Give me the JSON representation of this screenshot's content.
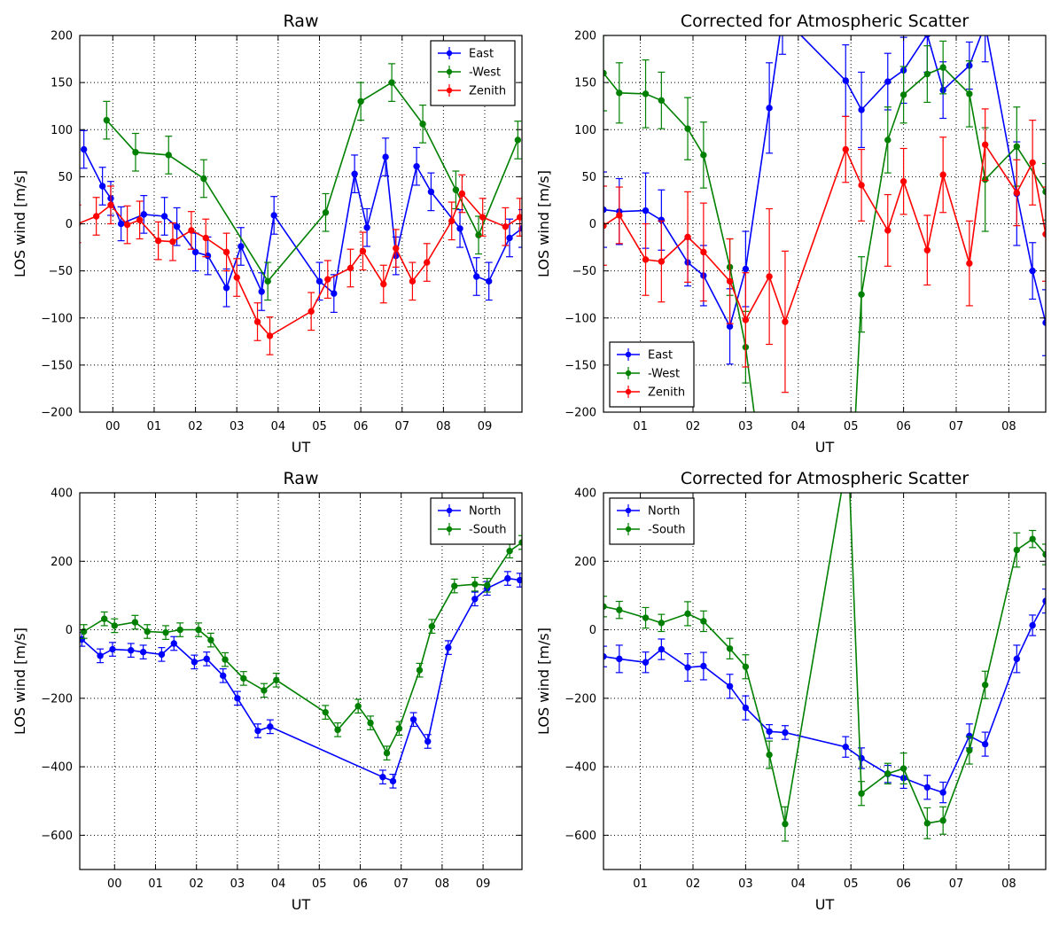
{
  "colors": {
    "blue": "#0000ff",
    "green": "#008000",
    "red": "#ff0000",
    "grid": "#000000"
  },
  "chart_data": [
    {
      "type": "line",
      "title": "Raw",
      "xlabel": "UT",
      "ylabel": "LOS wind [m/s]",
      "xlim": [
        -0.8,
        9.9
      ],
      "ylim": [
        -200,
        200
      ],
      "xticks": [
        0,
        1,
        2,
        3,
        4,
        5,
        6,
        7,
        8,
        9
      ],
      "xticklabels": [
        "00",
        "01",
        "02",
        "03",
        "04",
        "05",
        "06",
        "07",
        "08",
        "09"
      ],
      "yticks": [
        -200,
        -150,
        -100,
        -50,
        0,
        50,
        100,
        150,
        200
      ],
      "yticklabels": [
        "−200",
        "−150",
        "−100",
        "−50",
        "0",
        "50",
        "100",
        "150",
        "200"
      ],
      "grid": true,
      "legend": "upper right",
      "series": [
        {
          "name": "East",
          "color": "blue",
          "x": [
            -0.7,
            -0.25,
            -0.05,
            0.2,
            0.75,
            1.25,
            1.55,
            2.0,
            2.3,
            2.75,
            3.1,
            3.6,
            3.9,
            5.0,
            5.35,
            5.85,
            6.15,
            6.6,
            6.85,
            7.35,
            7.7,
            8.4,
            8.8,
            9.1,
            9.6,
            9.9
          ],
          "y": [
            79,
            40,
            27,
            0,
            10,
            8,
            -3,
            -30,
            -34,
            -68,
            -24,
            -72,
            9,
            -61,
            -74,
            53,
            -4,
            71,
            -34,
            61,
            34,
            -5,
            -56,
            -61,
            -15,
            -5
          ],
          "err": [
            20,
            20,
            18,
            18,
            20,
            20,
            20,
            20,
            20,
            20,
            20,
            20,
            20,
            20,
            20,
            20,
            20,
            20,
            20,
            20,
            20,
            20,
            20,
            20,
            20,
            20
          ]
        },
        {
          "name": "-West",
          "color": "green",
          "x": [
            -0.15,
            0.55,
            1.35,
            2.2,
            3.75,
            5.15,
            6.0,
            6.75,
            7.5,
            8.3,
            8.85,
            9.8
          ],
          "y": [
            110,
            76,
            73,
            48,
            -61,
            12,
            130,
            150,
            106,
            36,
            -12,
            89
          ],
          "err": [
            20,
            20,
            20,
            20,
            20,
            20,
            20,
            20,
            20,
            20,
            20,
            20
          ]
        },
        {
          "name": "Zenith",
          "color": "red",
          "x": [
            -0.85,
            -0.4,
            -0.05,
            0.35,
            0.65,
            1.1,
            1.45,
            1.9,
            2.25,
            2.75,
            3.0,
            3.5,
            3.8,
            4.8,
            5.2,
            5.75,
            6.05,
            6.55,
            6.85,
            7.25,
            7.6,
            8.2,
            8.45,
            8.95,
            9.5,
            9.85
          ],
          "y": [
            0,
            8,
            20,
            -1,
            4,
            -18,
            -19,
            -7,
            -15,
            -30,
            -57,
            -104,
            -119,
            -93,
            -59,
            -47,
            -29,
            -64,
            -26,
            -61,
            -41,
            3,
            32,
            7,
            -3,
            7
          ],
          "err": [
            20,
            20,
            20,
            20,
            20,
            20,
            20,
            20,
            20,
            20,
            20,
            20,
            20,
            20,
            20,
            20,
            20,
            20,
            20,
            20,
            20,
            20,
            20,
            20,
            20,
            20
          ]
        }
      ]
    },
    {
      "type": "line",
      "title": "Corrected for Atmospheric Scatter",
      "xlabel": "UT",
      "ylabel": "LOS wind [m/s]",
      "xlim": [
        0.3,
        8.7
      ],
      "ylim": [
        -200,
        200
      ],
      "xticks": [
        1,
        2,
        3,
        4,
        5,
        6,
        7,
        8
      ],
      "xticklabels": [
        "01",
        "02",
        "03",
        "04",
        "05",
        "06",
        "07",
        "08"
      ],
      "yticks": [
        -200,
        -150,
        -100,
        -50,
        0,
        50,
        100,
        150,
        200
      ],
      "yticklabels": [
        "−200",
        "−150",
        "−100",
        "−50",
        "0",
        "50",
        "100",
        "150",
        "200"
      ],
      "grid": true,
      "legend": "lower left",
      "series": [
        {
          "name": "East",
          "color": "blue",
          "x": [
            0.3,
            0.6,
            1.1,
            1.4,
            1.9,
            2.2,
            2.7,
            3.0,
            3.45,
            3.7,
            4.9,
            5.2,
            5.7,
            6.0,
            6.45,
            6.75,
            7.25,
            7.55,
            8.15,
            8.45,
            8.7
          ],
          "y": [
            15,
            13,
            14,
            4,
            -41,
            -55,
            -109,
            -48,
            123,
            220,
            152,
            121,
            151,
            163,
            201,
            142,
            168,
            212,
            32,
            -50,
            -105
          ],
          "err": [
            40,
            35,
            40,
            32,
            25,
            32,
            40,
            40,
            48,
            40,
            38,
            40,
            30,
            35,
            40,
            30,
            25,
            40,
            55,
            30,
            35
          ]
        },
        {
          "name": "-West",
          "color": "green",
          "x": [
            0.3,
            0.6,
            1.1,
            1.4,
            1.9,
            2.2,
            2.7,
            3.0,
            3.3,
            5.0,
            5.2,
            5.7,
            6.0,
            6.45,
            6.75,
            7.25,
            7.55,
            8.15,
            8.7
          ],
          "y": [
            160,
            139,
            138,
            131,
            101,
            73,
            -46,
            -131,
            -260,
            -300,
            -75,
            89,
            137,
            159,
            166,
            138,
            47,
            82,
            34
          ],
          "err": [
            40,
            32,
            36,
            30,
            33,
            35,
            30,
            38,
            30,
            30,
            40,
            35,
            30,
            30,
            28,
            35,
            55,
            42,
            30
          ]
        },
        {
          "name": "Zenith",
          "color": "red",
          "x": [
            0.3,
            0.6,
            1.1,
            1.4,
            1.9,
            2.2,
            2.7,
            3.0,
            3.45,
            3.75,
            4.9,
            5.2,
            5.7,
            6.0,
            6.45,
            6.75,
            7.25,
            7.55,
            8.15,
            8.45,
            8.7
          ],
          "y": [
            -2,
            9,
            -38,
            -40,
            -14,
            -30,
            -61,
            -102,
            -56,
            -104,
            79,
            41,
            -7,
            45,
            -28,
            52,
            -42,
            84,
            33,
            65,
            -11
          ],
          "err": [
            42,
            30,
            38,
            43,
            48,
            52,
            45,
            50,
            72,
            75,
            35,
            38,
            38,
            35,
            37,
            40,
            45,
            38,
            35,
            45,
            50
          ]
        }
      ]
    },
    {
      "type": "line",
      "title": "Raw",
      "xlabel": "UT",
      "ylabel": "LOS wind [m/s]",
      "xlim": [
        -0.85,
        9.95
      ],
      "ylim": [
        -700,
        400
      ],
      "xticks": [
        0,
        1,
        2,
        3,
        4,
        5,
        6,
        7,
        8,
        9
      ],
      "xticklabels": [
        "00",
        "01",
        "02",
        "03",
        "04",
        "05",
        "06",
        "07",
        "08",
        "09"
      ],
      "yticks": [
        -600,
        -400,
        -200,
        0,
        200,
        400
      ],
      "yticklabels": [
        "−600",
        "−400",
        "−200",
        "0",
        "200",
        "400"
      ],
      "grid": true,
      "legend": "upper right",
      "series": [
        {
          "name": "North",
          "color": "blue",
          "x": [
            -0.8,
            -0.35,
            -0.05,
            0.4,
            0.7,
            1.15,
            1.45,
            1.95,
            2.25,
            2.65,
            3.0,
            3.5,
            3.8,
            6.55,
            6.8,
            7.3,
            7.65,
            8.15,
            8.8,
            9.1,
            9.6,
            9.9
          ],
          "y": [
            -28,
            -76,
            -57,
            -60,
            -65,
            -72,
            -40,
            -94,
            -85,
            -134,
            -200,
            -295,
            -283,
            -430,
            -442,
            -262,
            -326,
            -52,
            90,
            121,
            150,
            145
          ],
          "err": [
            20,
            20,
            20,
            20,
            20,
            20,
            20,
            20,
            20,
            20,
            20,
            20,
            20,
            20,
            20,
            20,
            20,
            20,
            20,
            20,
            20,
            20
          ]
        },
        {
          "name": "-South",
          "color": "green",
          "x": [
            -0.75,
            -0.25,
            0.0,
            0.5,
            0.8,
            1.25,
            1.6,
            2.05,
            2.35,
            2.7,
            3.15,
            3.65,
            3.95,
            5.15,
            5.45,
            5.95,
            6.25,
            6.65,
            6.95,
            7.45,
            7.75,
            8.3,
            8.8,
            9.1,
            9.65,
            9.95
          ],
          "y": [
            -5,
            32,
            12,
            22,
            -5,
            -8,
            0,
            0,
            -30,
            -87,
            -142,
            -177,
            -147,
            -241,
            -292,
            -223,
            -272,
            -360,
            -288,
            -118,
            10,
            128,
            133,
            130,
            230,
            255
          ],
          "err": [
            20,
            20,
            20,
            20,
            20,
            20,
            20,
            20,
            20,
            20,
            20,
            20,
            20,
            20,
            20,
            20,
            20,
            20,
            20,
            20,
            20,
            20,
            20,
            20,
            20,
            20
          ]
        }
      ]
    },
    {
      "type": "line",
      "title": "Corrected for Atmospheric Scatter",
      "xlabel": "UT",
      "ylabel": "LOS wind [m/s]",
      "xlim": [
        0.3,
        8.7
      ],
      "ylim": [
        -700,
        400
      ],
      "xticks": [
        1,
        2,
        3,
        4,
        5,
        6,
        7,
        8
      ],
      "xticklabels": [
        "01",
        "02",
        "03",
        "04",
        "05",
        "06",
        "07",
        "08"
      ],
      "yticks": [
        -600,
        -400,
        -200,
        0,
        200,
        400
      ],
      "yticklabels": [
        "−600",
        "−400",
        "−200",
        "0",
        "200",
        "400"
      ],
      "grid": true,
      "legend": "upper left",
      "series": [
        {
          "name": "North",
          "color": "blue",
          "x": [
            0.3,
            0.6,
            1.1,
            1.4,
            1.9,
            2.2,
            2.7,
            3.0,
            3.45,
            3.75,
            4.9,
            5.2,
            5.7,
            6.0,
            6.45,
            6.75,
            7.25,
            7.55,
            8.15,
            8.45,
            8.7
          ],
          "y": [
            -78,
            -85,
            -95,
            -57,
            -110,
            -106,
            -165,
            -228,
            -297,
            -300,
            -342,
            -375,
            -421,
            -433,
            -460,
            -475,
            -310,
            -334,
            -85,
            13,
            84
          ],
          "err": [
            30,
            40,
            30,
            30,
            40,
            40,
            35,
            35,
            20,
            20,
            30,
            30,
            25,
            30,
            35,
            30,
            35,
            35,
            40,
            30,
            35
          ]
        },
        {
          "name": "-South",
          "color": "green",
          "x": [
            0.3,
            0.6,
            1.1,
            1.4,
            1.9,
            2.2,
            2.7,
            3.0,
            3.45,
            3.75,
            4.95,
            5.2,
            5.7,
            6.0,
            6.45,
            6.75,
            7.25,
            7.55,
            8.15,
            8.45,
            8.7
          ],
          "y": [
            68,
            58,
            35,
            20,
            47,
            25,
            -55,
            -108,
            -365,
            -567,
            520,
            -478,
            -420,
            -405,
            -565,
            -557,
            -352,
            -161,
            233,
            265,
            220
          ],
          "err": [
            30,
            25,
            30,
            25,
            35,
            30,
            30,
            35,
            40,
            50,
            60,
            35,
            30,
            45,
            45,
            40,
            40,
            40,
            50,
            25,
            30
          ]
        }
      ]
    }
  ]
}
